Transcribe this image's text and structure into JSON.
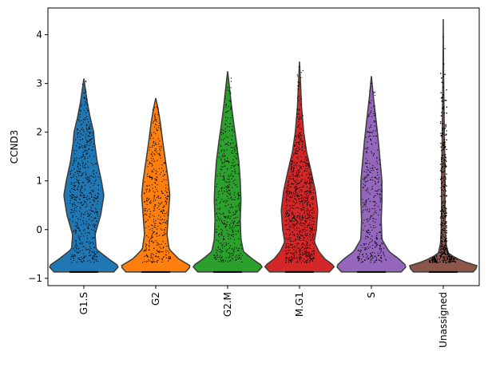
{
  "chart_data": {
    "type": "violin",
    "ylabel": "CCND3",
    "ylim": [
      -1.15,
      4.55
    ],
    "yticks": [
      -1,
      0,
      1,
      2,
      3,
      4
    ],
    "show_points": true,
    "grid": false,
    "categories": [
      "G1.S",
      "G2",
      "G2.M",
      "M.G1",
      "S",
      "Unassigned"
    ],
    "colors": [
      "#1f77b4",
      "#ff7f0e",
      "#2ca02c",
      "#d62728",
      "#9467bd",
      "#8c564b"
    ],
    "min_value": -0.87,
    "max_values": [
      3.1,
      2.7,
      3.25,
      3.45,
      3.15,
      4.32
    ],
    "density_profiles": [
      [
        [
          -0.87,
          0.85
        ],
        [
          -0.75,
          1.0
        ],
        [
          -0.6,
          0.7
        ],
        [
          -0.4,
          0.35
        ],
        [
          -0.1,
          0.32
        ],
        [
          0.3,
          0.48
        ],
        [
          0.7,
          0.57
        ],
        [
          1.0,
          0.5
        ],
        [
          1.4,
          0.38
        ],
        [
          1.8,
          0.3
        ],
        [
          2.0,
          0.28
        ],
        [
          2.3,
          0.18
        ],
        [
          2.6,
          0.1
        ],
        [
          3.1,
          0.0
        ]
      ],
      [
        [
          -0.87,
          0.85
        ],
        [
          -0.75,
          1.0
        ],
        [
          -0.6,
          0.65
        ],
        [
          -0.4,
          0.38
        ],
        [
          -0.1,
          0.32
        ],
        [
          0.3,
          0.36
        ],
        [
          0.7,
          0.4
        ],
        [
          1.0,
          0.36
        ],
        [
          1.4,
          0.28
        ],
        [
          1.8,
          0.2
        ],
        [
          2.2,
          0.13
        ],
        [
          2.5,
          0.06
        ],
        [
          2.7,
          0.0
        ]
      ],
      [
        [
          -0.87,
          0.85
        ],
        [
          -0.75,
          1.0
        ],
        [
          -0.6,
          0.7
        ],
        [
          -0.45,
          0.45
        ],
        [
          -0.2,
          0.38
        ],
        [
          0.2,
          0.36
        ],
        [
          0.6,
          0.38
        ],
        [
          1.0,
          0.36
        ],
        [
          1.4,
          0.32
        ],
        [
          1.8,
          0.25
        ],
        [
          2.2,
          0.17
        ],
        [
          2.6,
          0.1
        ],
        [
          3.0,
          0.04
        ],
        [
          3.25,
          0.0
        ]
      ],
      [
        [
          -0.87,
          0.85
        ],
        [
          -0.75,
          1.0
        ],
        [
          -0.6,
          0.72
        ],
        [
          -0.45,
          0.55
        ],
        [
          -0.25,
          0.42
        ],
        [
          0.0,
          0.48
        ],
        [
          0.4,
          0.52
        ],
        [
          0.8,
          0.45
        ],
        [
          1.2,
          0.33
        ],
        [
          1.6,
          0.2
        ],
        [
          2.0,
          0.12
        ],
        [
          2.5,
          0.06
        ],
        [
          3.0,
          0.03
        ],
        [
          3.45,
          0.0
        ]
      ],
      [
        [
          -0.87,
          0.85
        ],
        [
          -0.75,
          1.0
        ],
        [
          -0.6,
          0.78
        ],
        [
          -0.45,
          0.5
        ],
        [
          -0.2,
          0.3
        ],
        [
          0.2,
          0.28
        ],
        [
          0.6,
          0.3
        ],
        [
          1.0,
          0.3
        ],
        [
          1.4,
          0.25
        ],
        [
          1.8,
          0.2
        ],
        [
          2.2,
          0.14
        ],
        [
          2.7,
          0.06
        ],
        [
          3.15,
          0.0
        ]
      ],
      [
        [
          -0.87,
          0.85
        ],
        [
          -0.75,
          1.0
        ],
        [
          -0.65,
          0.55
        ],
        [
          -0.5,
          0.15
        ],
        [
          -0.3,
          0.08
        ],
        [
          0.0,
          0.06
        ],
        [
          0.5,
          0.05
        ],
        [
          1.0,
          0.05
        ],
        [
          1.5,
          0.04
        ],
        [
          2.0,
          0.03
        ],
        [
          2.5,
          0.02
        ],
        [
          3.0,
          0.012
        ],
        [
          3.5,
          0.006
        ],
        [
          4.32,
          0.0
        ]
      ]
    ],
    "point_counts": [
      600,
      420,
      460,
      900,
      380,
      1400
    ]
  }
}
